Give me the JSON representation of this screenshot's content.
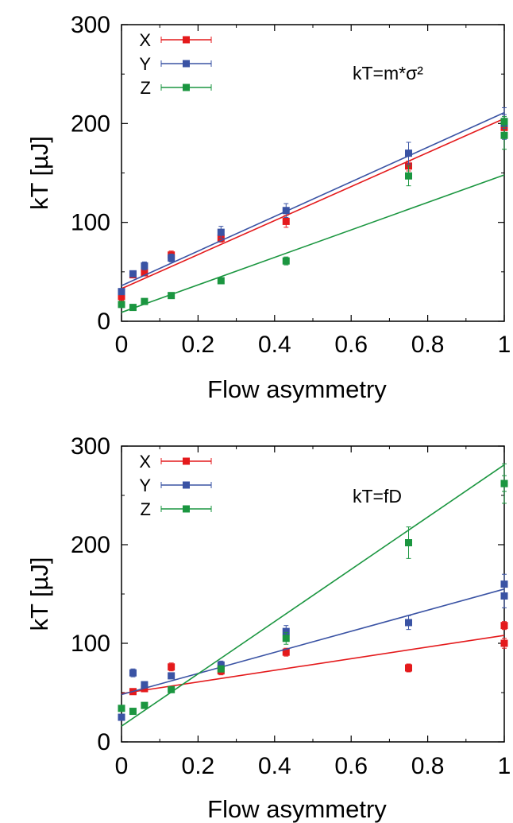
{
  "chart_data": [
    {
      "type": "scatter",
      "xlabel": "Flow asymmetry",
      "ylabel": "kT [µJ]",
      "xlim": [
        0,
        1
      ],
      "ylim": [
        0,
        300
      ],
      "xticks": [
        "0",
        "0.2",
        "0.4",
        "0.6",
        "0.8",
        "1"
      ],
      "yticks": [
        "0",
        "100",
        "200",
        "300"
      ],
      "annotation": "kT=m*σ²",
      "legend_position": "top-left",
      "series": [
        {
          "name": "X",
          "color": "#e41a1c",
          "x": [
            0,
            0.03,
            0.06,
            0.13,
            0.26,
            0.43,
            0.75,
            1.0,
            1.0
          ],
          "y": [
            25,
            47,
            49,
            67,
            84,
            101,
            157,
            196,
            200
          ],
          "err": [
            4,
            3,
            3,
            4,
            4,
            6,
            5,
            8,
            5
          ],
          "fit": [
            33,
            205
          ]
        },
        {
          "name": "Y",
          "color": "#3a53a4",
          "x": [
            0,
            0.03,
            0.06,
            0.13,
            0.26,
            0.43,
            0.75,
            1.0,
            1.0
          ],
          "y": [
            30,
            48,
            56,
            64,
            90,
            112,
            170,
            200,
            202
          ],
          "err": [
            3,
            3,
            4,
            4,
            6,
            7,
            11,
            16,
            7
          ],
          "fit": [
            36,
            211
          ]
        },
        {
          "name": "Z",
          "color": "#1b9640",
          "x": [
            0,
            0.03,
            0.06,
            0.13,
            0.26,
            0.43,
            0.75,
            1.0,
            1.0
          ],
          "y": [
            17,
            14,
            20,
            26,
            41,
            61,
            147,
            188,
            202
          ],
          "err": [
            3,
            2,
            2,
            2,
            2,
            4,
            10,
            14,
            5
          ],
          "fit": [
            9,
            148
          ]
        }
      ]
    },
    {
      "type": "scatter",
      "xlabel": "Flow asymmetry",
      "ylabel": "kT [µJ]",
      "xlim": [
        0,
        1
      ],
      "ylim": [
        0,
        300
      ],
      "xticks": [
        "0",
        "0.2",
        "0.4",
        "0.6",
        "0.8",
        "1"
      ],
      "yticks": [
        "0",
        "100",
        "200",
        "300"
      ],
      "annotation": "kT=fD",
      "legend_position": "top-left",
      "series": [
        {
          "name": "X",
          "color": "#e41a1c",
          "x": [
            0,
            0.03,
            0.06,
            0.13,
            0.26,
            0.43,
            0.75,
            1.0,
            1.0
          ],
          "y": [
            25,
            51,
            54,
            76,
            72,
            91,
            75,
            100,
            118
          ],
          "err": [
            3,
            3,
            3,
            4,
            4,
            4,
            4,
            5,
            4
          ],
          "fit": [
            49,
            108
          ]
        },
        {
          "name": "Y",
          "color": "#3a53a4",
          "x": [
            0,
            0.03,
            0.06,
            0.13,
            0.26,
            0.43,
            0.75,
            1.0,
            1.0
          ],
          "y": [
            25,
            70,
            58,
            67,
            78,
            112,
            121,
            148,
            160
          ],
          "err": [
            3,
            4,
            3,
            3,
            4,
            6,
            7,
            12,
            10
          ],
          "fit": [
            48,
            155
          ]
        },
        {
          "name": "Z",
          "color": "#1b9640",
          "x": [
            0,
            0.03,
            0.06,
            0.13,
            0.26,
            0.43,
            0.75,
            1.0,
            1.0
          ],
          "y": [
            34,
            31,
            37,
            53,
            74,
            105,
            202,
            262,
            262
          ],
          "err": [
            2,
            2,
            2,
            2,
            3,
            6,
            16,
            20,
            8
          ],
          "fit": [
            16,
            281
          ]
        }
      ]
    }
  ]
}
